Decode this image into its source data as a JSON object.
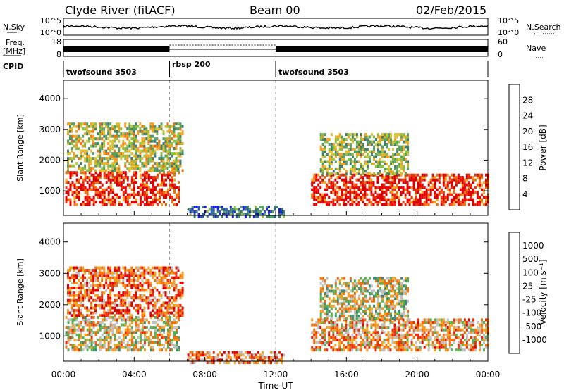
{
  "header": {
    "station": "Clyde River (fitACF)",
    "beam": "Beam 00",
    "date": "02/Feb/2015"
  },
  "side_labels": {
    "nsky": "N.Sky",
    "nsearch": "N.Search",
    "freq": "Freq.",
    "freq_unit": "[MHz]",
    "nave": "Nave",
    "cpid": "CPID"
  },
  "nsky_panel": {
    "left_ticks": [
      "10^5",
      "10^0"
    ],
    "right_ticks": [
      "10^5",
      "10^0"
    ]
  },
  "freq_panel": {
    "left_ticks": [
      "18",
      "8"
    ],
    "right_ticks": [
      "60",
      "0"
    ]
  },
  "cpid_segments": [
    {
      "label": "twofsound 3503",
      "start_hour": 0
    },
    {
      "label": "rbsp 200",
      "start_hour": 6
    },
    {
      "label": "twofsound 3503",
      "start_hour": 12
    }
  ],
  "time_axis": {
    "label": "Time UT",
    "ticks": [
      "00:00",
      "04:00",
      "08:00",
      "12:00",
      "16:00",
      "20:00",
      "00:00"
    ]
  },
  "chart_data": [
    {
      "type": "heatmap",
      "name": "power",
      "ylabel": "Slant Range [km]",
      "yticks": [
        "1000",
        "2000",
        "3000",
        "4000"
      ],
      "ylim": [
        200,
        4600
      ],
      "xlim_hours": [
        0,
        24
      ],
      "colorbar": {
        "label": "Power [dB]",
        "ticks": [
          "4",
          "8",
          "12",
          "16",
          "20",
          "24",
          "28"
        ],
        "range": [
          0,
          32
        ],
        "colors": [
          "#1f1fd4",
          "#2a5aa8",
          "#3f7f6f",
          "#55a060",
          "#8fbf40",
          "#d9c030",
          "#f5a020",
          "#f07010",
          "#e83010",
          "#e00000"
        ]
      },
      "regions": [
        {
          "t0": 0.1,
          "t1": 6.5,
          "r0": 600,
          "r1": 1700,
          "level": 0.9
        },
        {
          "t0": 0.2,
          "t1": 6.8,
          "r0": 1700,
          "r1": 3300,
          "level": 0.5
        },
        {
          "t0": 14.0,
          "t1": 24.0,
          "r0": 600,
          "r1": 1600,
          "level": 0.9
        },
        {
          "t0": 14.5,
          "t1": 19.5,
          "r0": 1600,
          "r1": 2900,
          "level": 0.45
        },
        {
          "t0": 7.0,
          "t1": 12.5,
          "r0": 200,
          "r1": 600,
          "level": 0.2
        }
      ]
    },
    {
      "type": "heatmap",
      "name": "velocity",
      "ylabel": "Slant Range [km]",
      "yticks": [
        "1000",
        "2000",
        "3000",
        "4000"
      ],
      "ylim": [
        200,
        4600
      ],
      "xlim_hours": [
        0,
        24
      ],
      "colorbar": {
        "label": "Velocity [m s⁻¹]",
        "ticks": [
          "1000",
          "500",
          "100",
          "25",
          "-25",
          "-100",
          "-500",
          "-1000"
        ],
        "colors": [
          "#1a3fc8",
          "#2e6aa0",
          "#3f8a70",
          "#5aaf50",
          "#c0c0c0",
          "#f5a020",
          "#f07010",
          "#e83010",
          "#e00000"
        ]
      },
      "regions": [
        {
          "t0": 0.1,
          "t1": 6.5,
          "r0": 600,
          "r1": 1700,
          "level": 0.55
        },
        {
          "t0": 0.2,
          "t1": 6.8,
          "r0": 1700,
          "r1": 3300,
          "level": 0.75
        },
        {
          "t0": 14.0,
          "t1": 24.0,
          "r0": 600,
          "r1": 1600,
          "level": 0.65
        },
        {
          "t0": 14.5,
          "t1": 19.5,
          "r0": 1600,
          "r1": 2900,
          "level": 0.5
        },
        {
          "t0": 7.0,
          "t1": 12.5,
          "r0": 200,
          "r1": 600,
          "level": 0.7
        }
      ]
    }
  ]
}
